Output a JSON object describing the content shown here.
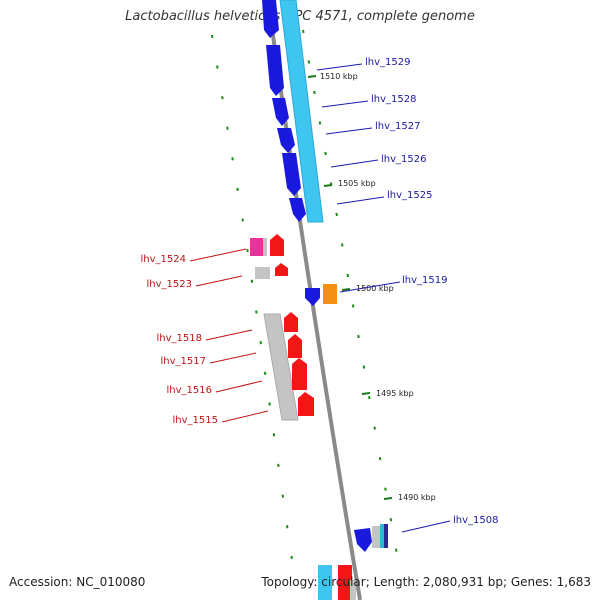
{
  "title": "Lactobacillus helveticus DPC 4571, complete genome",
  "footer": {
    "accession_label": "Accession:",
    "accession": "NC_010080",
    "topology_label": "Topology:",
    "topology": "circular",
    "length_label": "Length:",
    "length": "2,080,931 bp",
    "genes_label": "Genes:",
    "genes": "1,683"
  },
  "colors": {
    "backbone": "#888888",
    "forward_gene": "#1a1adf",
    "forward_track": "#3fc6f0",
    "reverse_gene": "#f21616",
    "reverse_track": "#c4c4c4",
    "pink_gene": "#f0309a",
    "orange_gene": "#f29012",
    "tick_mark": "#1a7a1a",
    "forward_label": "#1a1aa0",
    "reverse_label": "#c01414"
  },
  "tick_labels": [
    "1510 kbp",
    "1505 kbp",
    "1500 kbp",
    "1495 kbp",
    "1490 kbp"
  ],
  "genes_forward": [
    "lhv_1529",
    "lhv_1528",
    "lhv_1527",
    "lhv_1526",
    "lhv_1525",
    "lhv_1519",
    "lhv_1508"
  ],
  "genes_reverse": [
    "lhv_1524",
    "lhv_1523",
    "lhv_1518",
    "lhv_1517",
    "lhv_1516",
    "lhv_1515"
  ]
}
